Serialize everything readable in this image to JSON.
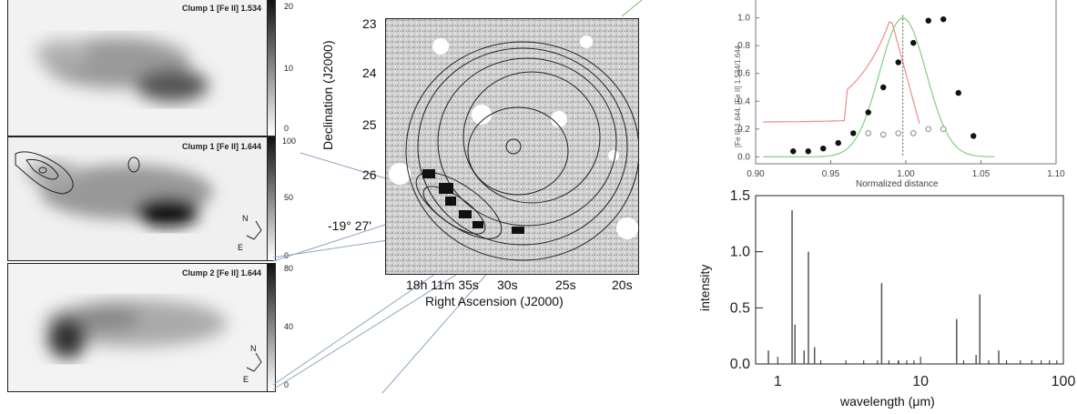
{
  "left_panels": [
    {
      "title": "Clump 1 [Fe II] 1.534",
      "cbar_ticks": [
        "20",
        "10",
        "0"
      ]
    },
    {
      "title": "Clump 1 [Fe II] 1.644",
      "cbar_ticks": [
        "100",
        "50",
        "0"
      ],
      "compass": [
        "N",
        "E"
      ]
    },
    {
      "title": "Clump 2 [Fe II] 1.644",
      "cbar_ticks": [
        "80",
        "40",
        "0"
      ],
      "compass": [
        "N",
        "E"
      ]
    }
  ],
  "center_map": {
    "dec_ticks": [
      "23",
      "24",
      "25",
      "26",
      "-19° 27'"
    ],
    "ra_ticks": [
      "18h 11m 35s",
      "30s",
      "25s",
      "20s"
    ],
    "xlabel": "Right Ascension (J2000)",
    "ylabel": "Declination (J2000)"
  },
  "chart_data": [
    {
      "type": "scatter",
      "xlabel": "Normalized distance",
      "ylabel": "[Fe II] 1.644, [Fe II] 1.534/1.644",
      "xlim": [
        0.9,
        1.1
      ],
      "ylim": [
        -0.05,
        1.05
      ],
      "xticks": [
        "0.90",
        "0.95",
        "1.00",
        "1.05",
        "1.10"
      ],
      "yticks": [
        "0.0",
        "0.2",
        "0.4",
        "0.6",
        "0.8",
        "1.0"
      ],
      "series": [
        {
          "values_x": [
            0.925,
            0.935,
            0.945,
            0.955,
            0.965,
            0.975,
            0.985,
            0.995,
            1.005,
            1.015,
            1.025,
            1.035,
            1.045
          ],
          "values_y": [
            0.04,
            0.04,
            0.06,
            0.1,
            0.17,
            0.32,
            0.5,
            0.68,
            0.82,
            0.98,
            0.99,
            0.46,
            0.15
          ],
          "marker": "filled-circle"
        },
        {
          "values_x": [
            0.975,
            0.985,
            0.995,
            1.005,
            1.015,
            1.025
          ],
          "values_y": [
            0.17,
            0.16,
            0.17,
            0.17,
            0.2,
            0.2
          ],
          "marker": "open-circle"
        }
      ],
      "curves": [
        {
          "color": "#f28a8a"
        },
        {
          "color": "#7fd17f"
        }
      ],
      "grid": false
    },
    {
      "type": "bar",
      "xlabel": "wavelength (μm)",
      "ylabel": "intensity",
      "xscale": "log",
      "xlim": [
        0.7,
        100
      ],
      "ylim": [
        0,
        1.5
      ],
      "xticks": [
        "1",
        "10",
        "100"
      ],
      "yticks": [
        "0.0",
        "0.5",
        "1.0",
        "1.5"
      ],
      "x": [
        0.86,
        1.26,
        1.32,
        1.53,
        1.64,
        1.81,
        5.34,
        7.0,
        17.9,
        24.5,
        26.0,
        35.3
      ],
      "values": [
        0.12,
        1.37,
        0.35,
        0.12,
        1.0,
        0.15,
        0.72,
        0.03,
        0.4,
        0.08,
        0.62,
        0.12
      ],
      "grid": false
    }
  ]
}
